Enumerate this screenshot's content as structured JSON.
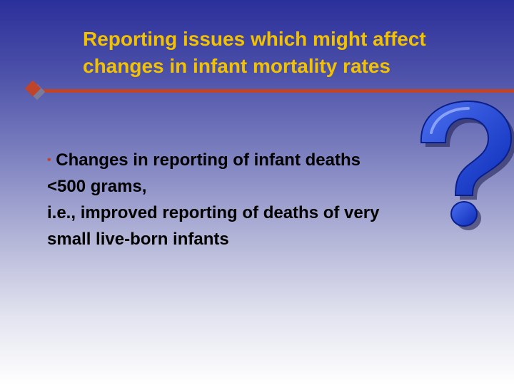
{
  "slide": {
    "title_line1": "Reporting issues which might affect",
    "title_line2": "changes in infant mortality rates",
    "bullet_symbol": "•",
    "bullet_line1": "Changes in reporting of infant deaths",
    "bullet_line2": "<500 grams,",
    "bullet_line3": "i.e., improved reporting of deaths of very",
    "bullet_line4": "small live-born infants",
    "colors": {
      "title": "#f2c200",
      "accent": "#c0442a",
      "question_mark": "#1a3fcf"
    },
    "icons": [
      "diamond-bullet-icon",
      "question-mark-icon"
    ]
  }
}
